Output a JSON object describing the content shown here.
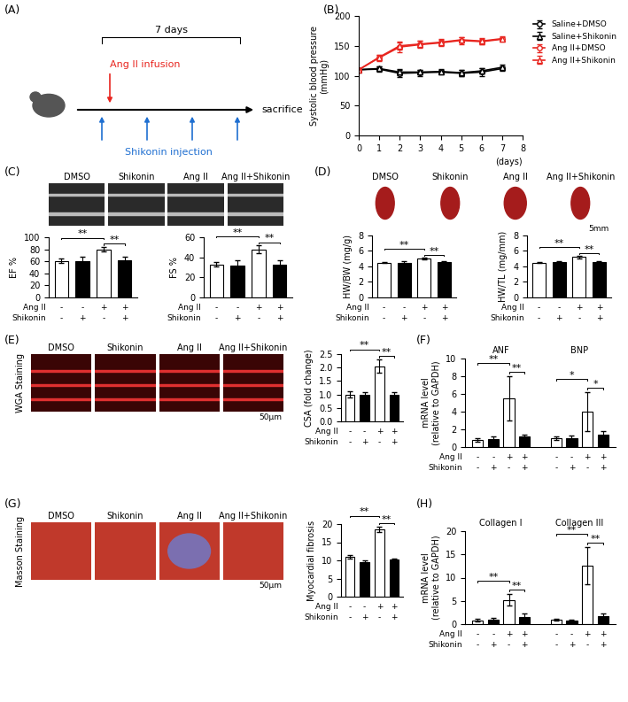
{
  "diagram": {
    "label": "(A)",
    "duration": "7 days",
    "infusion": "Ang II infusion",
    "injection": "Shikonin injection",
    "end": "sacrifice"
  },
  "image_panels": [
    {
      "label": "(C)",
      "titles": [
        "DMSO",
        "Shikonin",
        "Ang II",
        "Ang II+Shikonin"
      ]
    },
    {
      "label": "(D)",
      "titles": [
        "DMSO",
        "Shikonin",
        "Ang II",
        "Ang II+Shikonin"
      ],
      "scale_bar": "5mm"
    },
    {
      "label": "(E)",
      "side_label": "WGA Staining",
      "titles": [
        "DMSO",
        "Shikonin",
        "Ang II",
        "Ang II+Shikonin"
      ],
      "scale_bar": "50μm"
    },
    {
      "label": "(G)",
      "side_label": "Masson Staining",
      "titles": [
        "DMSO",
        "Shikonin",
        "Ang II",
        "Ang II+Shikonin"
      ],
      "scale_bar": "50μm"
    }
  ],
  "other_panel_labels": [
    "(B)",
    "(F)",
    "(H)"
  ],
  "chart_data": [
    {
      "type": "line",
      "xlabel": "(days)",
      "ylabel": "Systolic blood pressure\n(mmHg)",
      "x": [
        0,
        1,
        2,
        3,
        4,
        5,
        6,
        7
      ],
      "xlim": [
        0,
        8
      ],
      "xticks": [
        0,
        1,
        2,
        3,
        4,
        5,
        6,
        7,
        8
      ],
      "ylim": [
        0,
        200
      ],
      "yticks": [
        0,
        50,
        100,
        150,
        200
      ],
      "legend": "upper left",
      "series": [
        {
          "name": "Saline+DMSO",
          "color": "#000000",
          "marker": "circle",
          "values": [
            110,
            111,
            104,
            105,
            106,
            104,
            106,
            112
          ],
          "errors": [
            3,
            5,
            6,
            5,
            4,
            5,
            6,
            4
          ]
        },
        {
          "name": "Saline+Shikonin",
          "color": "#000000",
          "marker": "triangle",
          "values": [
            110,
            112,
            106,
            106,
            107,
            105,
            108,
            114
          ],
          "errors": [
            3,
            4,
            5,
            4,
            4,
            5,
            5,
            4
          ]
        },
        {
          "name": "Ang II+DMSO",
          "color": "#e8251f",
          "marker": "circle",
          "values": [
            110,
            130,
            148,
            152,
            155,
            159,
            157,
            161
          ],
          "errors": [
            3,
            5,
            8,
            6,
            5,
            6,
            5,
            4
          ]
        },
        {
          "name": "Ang II+Shikonin",
          "color": "#e8251f",
          "marker": "triangle",
          "values": [
            110,
            131,
            150,
            153,
            156,
            160,
            158,
            162
          ],
          "errors": [
            3,
            4,
            7,
            5,
            5,
            5,
            5,
            4
          ]
        }
      ]
    },
    {
      "type": "bar",
      "ylabel": "EF %",
      "categories": [
        null,
        null,
        null,
        null
      ],
      "values": [
        61,
        60,
        80,
        62
      ],
      "errors": [
        3,
        7,
        4,
        5
      ],
      "colors": [
        "#ffffff",
        "#000000",
        "#ffffff",
        "#000000"
      ],
      "ylim": [
        0,
        100
      ],
      "yticks": [
        0,
        20,
        40,
        60,
        80,
        100
      ],
      "conditions": [
        {
          "name": "Ang II",
          "signs": [
            "-",
            "-",
            "+",
            "+"
          ]
        },
        {
          "name": "Shikonin",
          "signs": [
            "-",
            "+",
            "-",
            "+"
          ]
        }
      ],
      "significance": [
        {
          "from": 2,
          "to": 3,
          "label": "**"
        },
        {
          "from": 0,
          "to": 2,
          "label": "**"
        }
      ]
    },
    {
      "type": "bar",
      "ylabel": "FS %",
      "categories": [
        null,
        null,
        null,
        null
      ],
      "values": [
        33,
        32,
        48,
        33
      ],
      "errors": [
        2,
        5,
        4,
        4
      ],
      "colors": [
        "#ffffff",
        "#000000",
        "#ffffff",
        "#000000"
      ],
      "ylim": [
        0,
        60
      ],
      "yticks": [
        0,
        20,
        40,
        60
      ],
      "conditions": [
        {
          "name": "Ang II",
          "signs": [
            "-",
            "-",
            "+",
            "+"
          ]
        },
        {
          "name": "Shikonin",
          "signs": [
            "-",
            "+",
            "-",
            "+"
          ]
        }
      ],
      "significance": [
        {
          "from": 2,
          "to": 3,
          "label": "**"
        },
        {
          "from": 0,
          "to": 2,
          "label": "**"
        }
      ]
    },
    {
      "type": "bar",
      "ylabel": "HW/BW (mg/g)",
      "categories": [
        null,
        null,
        null,
        null
      ],
      "values": [
        4.5,
        4.5,
        5.0,
        4.6
      ],
      "errors": [
        0.1,
        0.15,
        0.1,
        0.1
      ],
      "colors": [
        "#ffffff",
        "#000000",
        "#ffffff",
        "#000000"
      ],
      "ylim": [
        0,
        8
      ],
      "yticks": [
        0,
        2,
        4,
        6,
        8
      ],
      "conditions": [
        {
          "name": "Ang II",
          "signs": [
            "-",
            "-",
            "+",
            "+"
          ]
        },
        {
          "name": "Shikonin",
          "signs": [
            "-",
            "+",
            "-",
            "+"
          ]
        }
      ],
      "significance": [
        {
          "from": 2,
          "to": 3,
          "label": "**"
        },
        {
          "from": 0,
          "to": 2,
          "label": "**"
        }
      ]
    },
    {
      "type": "bar",
      "ylabel": "HW/TL (mg/mm)",
      "categories": [
        null,
        null,
        null,
        null
      ],
      "values": [
        4.5,
        4.6,
        5.2,
        4.6
      ],
      "errors": [
        0.05,
        0.1,
        0.12,
        0.1
      ],
      "colors": [
        "#ffffff",
        "#000000",
        "#ffffff",
        "#000000"
      ],
      "ylim": [
        0,
        8
      ],
      "yticks": [
        0,
        2,
        4,
        6,
        8
      ],
      "conditions": [
        {
          "name": "Ang II",
          "signs": [
            "-",
            "-",
            "+",
            "+"
          ]
        },
        {
          "name": "Shikonin",
          "signs": [
            "-",
            "+",
            "-",
            "+"
          ]
        }
      ],
      "significance": [
        {
          "from": 2,
          "to": 3,
          "label": "**"
        },
        {
          "from": 0,
          "to": 2,
          "label": "**"
        }
      ]
    },
    {
      "type": "bar",
      "ylabel": "CSA (fold change)",
      "categories": [
        null,
        null,
        null,
        null
      ],
      "values": [
        1.0,
        1.0,
        2.05,
        1.0
      ],
      "errors": [
        0.12,
        0.08,
        0.25,
        0.1
      ],
      "colors": [
        "#ffffff",
        "#000000",
        "#ffffff",
        "#000000"
      ],
      "ylim": [
        0,
        2.5
      ],
      "yticks": [
        {
          "value": 0,
          "label": "0.0"
        },
        0.5,
        {
          "value": 1,
          "label": "1.0"
        },
        1.5,
        {
          "value": 2,
          "label": "2.0"
        },
        2.5
      ],
      "conditions": [
        {
          "name": "Ang II",
          "signs": [
            "-",
            "-",
            "+",
            "+"
          ]
        },
        {
          "name": "Shikonin",
          "signs": [
            "-",
            "+",
            "-",
            "+"
          ]
        }
      ],
      "significance": [
        {
          "from": 2,
          "to": 3,
          "label": "**"
        },
        {
          "from": 0,
          "to": 2,
          "label": "**"
        }
      ]
    },
    {
      "type": "grouped_bar",
      "ylabel": "mRNA level\n(relative to GAPDH)",
      "categories": [
        null,
        null,
        null,
        null
      ],
      "colors": [
        "#ffffff",
        "#000000",
        "#ffffff",
        "#000000"
      ],
      "ylim": [
        0,
        10
      ],
      "yticks": [
        0,
        2,
        4,
        6,
        8,
        10
      ],
      "conditions": [
        {
          "name": "Ang II",
          "signs": [
            "-",
            "-",
            "+",
            "+"
          ]
        },
        {
          "name": "Shikonin",
          "signs": [
            "-",
            "+",
            "-",
            "+"
          ]
        }
      ],
      "groups": [
        {
          "name": "ANF",
          "values": [
            0.8,
            0.9,
            5.5,
            1.2
          ],
          "errors": [
            0.2,
            0.3,
            2.5,
            0.2
          ],
          "significance": [
            {
              "from": 2,
              "to": 3,
              "label": "**"
            },
            {
              "from": 0,
              "to": 2,
              "label": "**"
            }
          ]
        },
        {
          "name": "BNP",
          "values": [
            1.0,
            1.0,
            4.0,
            1.4
          ],
          "errors": [
            0.2,
            0.3,
            2.2,
            0.4
          ],
          "significance": [
            {
              "from": 2,
              "to": 3,
              "label": "*"
            },
            {
              "from": 0,
              "to": 2,
              "label": "*"
            }
          ]
        }
      ]
    },
    {
      "type": "bar",
      "ylabel": "Myocardial fibrosis",
      "categories": [
        null,
        null,
        null,
        null
      ],
      "values": [
        11,
        9.5,
        18.5,
        10.2
      ],
      "errors": [
        0.5,
        0.5,
        0.8,
        0.3
      ],
      "colors": [
        "#ffffff",
        "#000000",
        "#ffffff",
        "#000000"
      ],
      "ylim": [
        0,
        20
      ],
      "yticks": [
        0,
        5,
        10,
        15,
        20
      ],
      "conditions": [
        {
          "name": "Ang II",
          "signs": [
            "-",
            "-",
            "+",
            "+"
          ]
        },
        {
          "name": "Shikonin",
          "signs": [
            "-",
            "+",
            "-",
            "+"
          ]
        }
      ],
      "significance": [
        {
          "from": 2,
          "to": 3,
          "label": "**"
        },
        {
          "from": 0,
          "to": 2,
          "label": "**"
        }
      ]
    },
    {
      "type": "grouped_bar",
      "ylabel": "mRNA level\n(relative to GAPDH)",
      "categories": [
        null,
        null,
        null,
        null
      ],
      "colors": [
        "#ffffff",
        "#000000",
        "#ffffff",
        "#000000"
      ],
      "ylim": [
        0,
        20
      ],
      "yticks": [
        0,
        5,
        10,
        15,
        20
      ],
      "conditions": [
        {
          "name": "Ang II",
          "signs": [
            "-",
            "-",
            "+",
            "+"
          ]
        },
        {
          "name": "Shikonin",
          "signs": [
            "-",
            "+",
            "-",
            "+"
          ]
        }
      ],
      "groups": [
        {
          "name": "Collagen I",
          "values": [
            0.8,
            1.0,
            5.2,
            1.5
          ],
          "errors": [
            0.3,
            0.3,
            1.2,
            0.8
          ],
          "significance": [
            {
              "from": 2,
              "to": 3,
              "label": "**"
            },
            {
              "from": 0,
              "to": 2,
              "label": "**"
            }
          ]
        },
        {
          "name": "Collagen III",
          "values": [
            0.9,
            0.8,
            12.5,
            1.8
          ],
          "errors": [
            0.2,
            0.2,
            4.0,
            0.5
          ],
          "significance": [
            {
              "from": 2,
              "to": 3,
              "label": "**"
            },
            {
              "from": 0,
              "to": 2,
              "label": "**"
            }
          ]
        }
      ]
    }
  ]
}
